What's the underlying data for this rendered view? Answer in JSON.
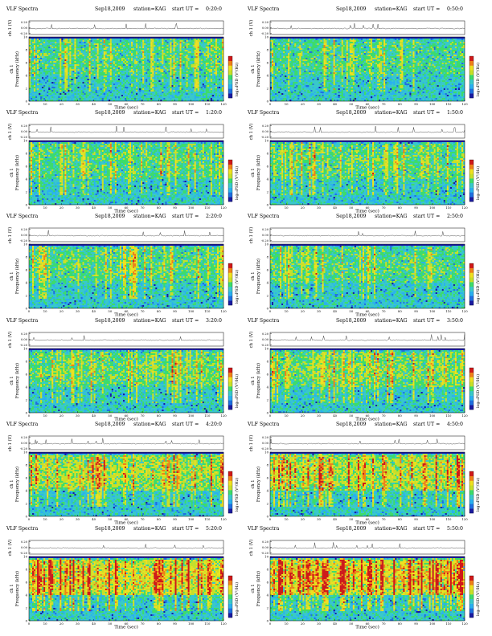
{
  "chart_data": {
    "type": "heatmap",
    "header": {
      "title": "VLF Spectra",
      "date": "Sep18,2009",
      "station": "station=KAG",
      "start_prefix": "start  UT ="
    },
    "xlabel": "Time  (sec)",
    "x_ticks": [
      0,
      10,
      20,
      30,
      40,
      50,
      60,
      70,
      80,
      90,
      100,
      110,
      120
    ],
    "xlim": [
      0,
      120
    ],
    "top_ylabel": "ch 1 (V)",
    "top_y_ticks": [
      "0.20",
      "0.00",
      "-0.20"
    ],
    "ylabel_channel": "ch 1",
    "ylabel": "Frequency  (kHz)",
    "y_ticks": [
      0,
      2,
      4,
      6,
      8,
      10
    ],
    "ylim": [
      0,
      10
    ],
    "colorbar_label": "log₁₀PSD (V²/Hz)",
    "panels": [
      {
        "start_ut": "0:20:0",
        "intensity": 0.25
      },
      {
        "start_ut": "0:50:0",
        "intensity": 0.25
      },
      {
        "start_ut": "1:20:0",
        "intensity": 0.3
      },
      {
        "start_ut": "1:50:0",
        "intensity": 0.3
      },
      {
        "start_ut": "2:20:0",
        "intensity": 0.3
      },
      {
        "start_ut": "2:50:0",
        "intensity": 0.3
      },
      {
        "start_ut": "3:20:0",
        "intensity": 0.35
      },
      {
        "start_ut": "3:50:0",
        "intensity": 0.4
      },
      {
        "start_ut": "4:20:0",
        "intensity": 0.55
      },
      {
        "start_ut": "4:50:0",
        "intensity": 0.6
      },
      {
        "start_ut": "5:20:0",
        "intensity": 0.8
      },
      {
        "start_ut": "5:50:0",
        "intensity": 0.85
      }
    ],
    "colormap": [
      "#1a1aa0",
      "#1f6fe0",
      "#2ab0f0",
      "#39c9c9",
      "#3ddc6a",
      "#c8e028",
      "#f0e020",
      "#f08018",
      "#d01818"
    ]
  }
}
